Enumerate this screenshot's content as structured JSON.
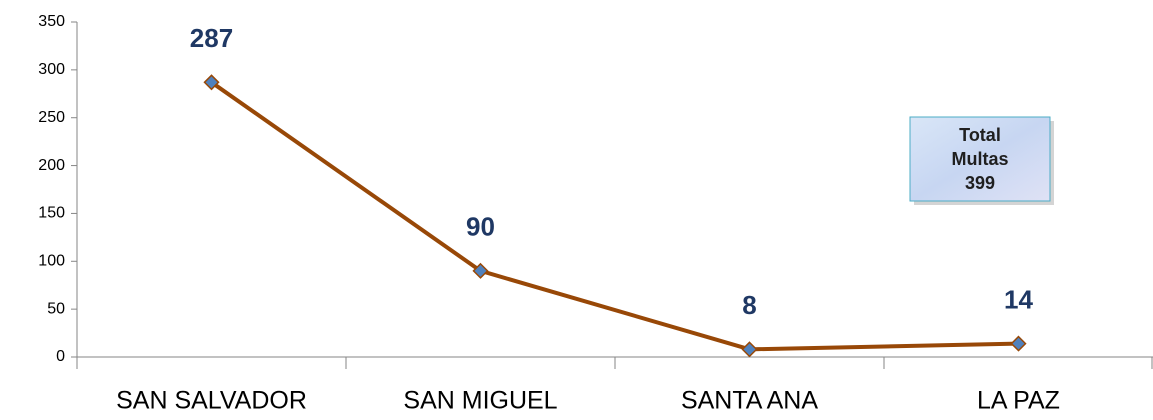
{
  "chart_data": {
    "type": "line",
    "categories": [
      "SAN SALVADOR",
      "SAN MIGUEL",
      "SANTA ANA",
      "LA PAZ"
    ],
    "series": [
      {
        "name": "Multas",
        "color": "#984807",
        "marker_color": "#4f81bd",
        "values": [
          287,
          90,
          8,
          14
        ]
      }
    ],
    "ylim": [
      0,
      350
    ],
    "yticks": [
      0,
      50,
      100,
      150,
      200,
      250,
      300,
      350
    ],
    "grid": false,
    "annotation": [
      "Total",
      "Multas",
      "399"
    ]
  }
}
